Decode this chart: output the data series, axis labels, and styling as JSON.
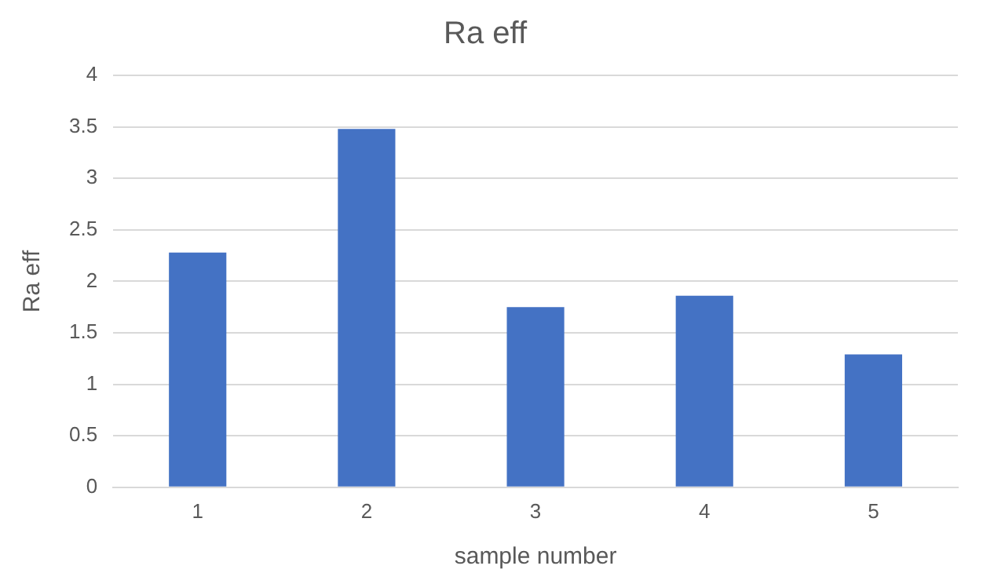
{
  "chart_data": {
    "type": "bar",
    "title": "Ra eff",
    "xlabel": "sample number",
    "ylabel": "Ra eff",
    "categories": [
      "1",
      "2",
      "3",
      "4",
      "5"
    ],
    "values": [
      2.28,
      3.48,
      1.75,
      1.86,
      1.29
    ],
    "color": "#4472c4",
    "ylim": [
      0,
      4
    ],
    "yticks": [
      0,
      0.5,
      1,
      1.5,
      2,
      2.5,
      3,
      3.5,
      4
    ],
    "grid": "y",
    "legend": false
  }
}
